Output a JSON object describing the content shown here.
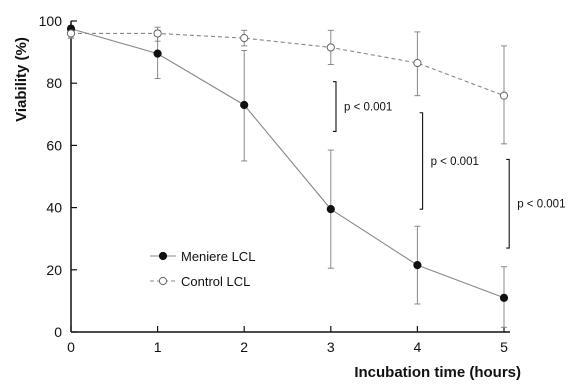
{
  "chart_data": {
    "type": "line",
    "xlabel": "Incubation time (hours)",
    "ylabel": "Viability (%)",
    "xlim": [
      0,
      5
    ],
    "ylim": [
      0,
      100
    ],
    "x_ticks": [
      "0",
      "1",
      "2",
      "3",
      "4",
      "5"
    ],
    "y_ticks": [
      "0",
      "20",
      "40",
      "60",
      "80",
      "100"
    ],
    "grid": false,
    "legend_placement": "lower-left",
    "series": [
      {
        "name": "Meniere LCL",
        "marker": "filled-circle",
        "line_style": "solid",
        "color": "#888888",
        "x": [
          0,
          1,
          2,
          3,
          4,
          5
        ],
        "values": [
          97.5,
          89.5,
          73,
          39.5,
          21.5,
          11
        ],
        "error_low": [
          94.5,
          81.5,
          55,
          20.5,
          9,
          1.5
        ],
        "error_high": [
          98.5,
          97,
          90.5,
          58.5,
          34,
          21
        ]
      },
      {
        "name": "Control LCL",
        "marker": "open-circle",
        "line_style": "dashed",
        "color": "#888888",
        "x": [
          0,
          1,
          2,
          3,
          4,
          5
        ],
        "values": [
          96,
          96,
          94.5,
          91.5,
          86.5,
          76
        ],
        "error_low": [
          94.5,
          93.5,
          92,
          86,
          76,
          60.5
        ],
        "error_high": [
          97.5,
          98,
          97,
          97,
          96.5,
          92
        ]
      }
    ],
    "annotations": [
      {
        "label": "p < 0.001",
        "x": 3.06,
        "y_low": 64.5,
        "y_high": 80.5
      },
      {
        "label": "p < 0.001",
        "x": 4.06,
        "y_low": 39.5,
        "y_high": 70.5
      },
      {
        "label": "p < 0.001",
        "x": 5.06,
        "y_low": 27,
        "y_high": 55.5
      }
    ]
  }
}
